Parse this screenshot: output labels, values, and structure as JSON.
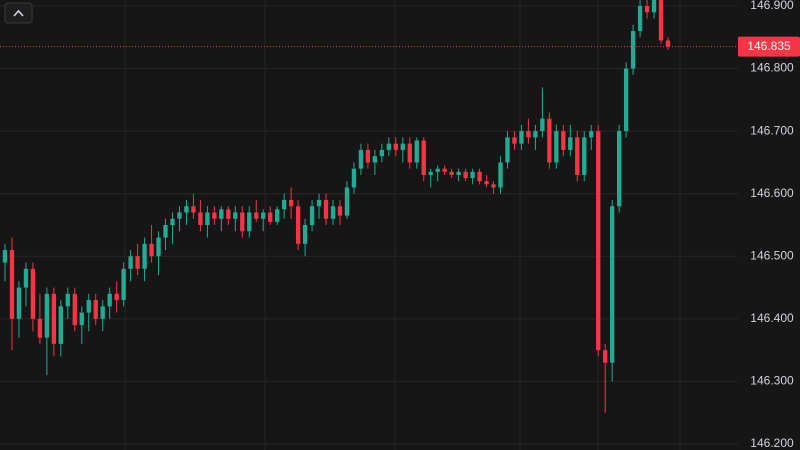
{
  "chart_data": {
    "type": "candlestick",
    "up_color": "#22ab94",
    "down_color": "#f23645",
    "ylim": [
      146.1904,
      146.9096
    ],
    "yticks": [
      {
        "value": 146.2,
        "label": "146.200"
      },
      {
        "value": 146.3,
        "label": "146.300"
      },
      {
        "value": 146.4,
        "label": "146.400"
      },
      {
        "value": 146.5,
        "label": "146.500"
      },
      {
        "value": 146.6,
        "label": "146.600"
      },
      {
        "value": 146.7,
        "label": "146.700"
      },
      {
        "value": 146.8,
        "label": "146.800"
      },
      {
        "value": 146.9,
        "label": "146.900"
      }
    ],
    "grid": true,
    "last_price": {
      "value": 146.835,
      "label": "146.835"
    },
    "ohlc": [
      [
        146.49,
        146.52,
        146.46,
        146.51
      ],
      [
        146.51,
        146.53,
        146.35,
        146.4
      ],
      [
        146.4,
        146.46,
        146.37,
        146.45
      ],
      [
        146.45,
        146.49,
        146.42,
        146.48
      ],
      [
        146.48,
        146.49,
        146.38,
        146.4
      ],
      [
        146.4,
        146.44,
        146.36,
        146.37
      ],
      [
        146.37,
        146.45,
        146.31,
        146.44
      ],
      [
        146.44,
        146.45,
        146.34,
        146.36
      ],
      [
        146.36,
        146.43,
        146.34,
        146.42
      ],
      [
        146.42,
        146.45,
        146.4,
        146.44
      ],
      [
        146.44,
        146.45,
        146.38,
        146.39
      ],
      [
        146.39,
        146.42,
        146.36,
        146.41
      ],
      [
        146.41,
        146.44,
        146.38,
        146.43
      ],
      [
        146.43,
        146.44,
        146.39,
        146.4
      ],
      [
        146.4,
        146.43,
        146.38,
        146.42
      ],
      [
        146.42,
        146.45,
        146.4,
        146.44
      ],
      [
        146.44,
        146.46,
        146.41,
        146.43
      ],
      [
        146.43,
        146.49,
        146.42,
        146.48
      ],
      [
        146.48,
        146.51,
        146.46,
        146.5
      ],
      [
        146.5,
        146.52,
        146.47,
        146.48
      ],
      [
        146.48,
        146.53,
        146.46,
        146.52
      ],
      [
        146.52,
        146.55,
        146.49,
        146.5
      ],
      [
        146.5,
        146.54,
        146.47,
        146.53
      ],
      [
        146.53,
        146.56,
        146.51,
        146.55
      ],
      [
        146.55,
        146.57,
        146.52,
        146.56
      ],
      [
        146.56,
        146.58,
        146.54,
        146.57
      ],
      [
        146.57,
        146.59,
        146.55,
        146.58
      ],
      [
        146.58,
        146.6,
        146.56,
        146.57
      ],
      [
        146.57,
        146.59,
        146.54,
        146.55
      ],
      [
        146.55,
        146.58,
        146.53,
        146.57
      ],
      [
        146.57,
        146.58,
        146.55,
        146.56
      ],
      [
        146.56,
        146.58,
        146.54,
        146.575
      ],
      [
        146.575,
        146.58,
        146.55,
        146.56
      ],
      [
        146.56,
        146.58,
        146.54,
        146.57
      ],
      [
        146.57,
        146.58,
        146.53,
        146.54
      ],
      [
        146.54,
        146.58,
        146.53,
        146.57
      ],
      [
        146.57,
        146.59,
        146.555,
        146.56
      ],
      [
        146.56,
        146.575,
        146.54,
        146.57
      ],
      [
        146.57,
        146.58,
        146.55,
        146.555
      ],
      [
        146.555,
        146.58,
        146.55,
        146.575
      ],
      [
        146.575,
        146.6,
        146.56,
        146.59
      ],
      [
        146.59,
        146.61,
        146.56,
        146.58
      ],
      [
        146.58,
        146.59,
        146.51,
        146.52
      ],
      [
        146.52,
        146.56,
        146.5,
        146.55
      ],
      [
        146.55,
        146.59,
        146.54,
        146.58
      ],
      [
        146.58,
        146.6,
        146.56,
        146.59
      ],
      [
        146.59,
        146.6,
        146.55,
        146.56
      ],
      [
        146.56,
        146.59,
        146.55,
        146.58
      ],
      [
        146.58,
        146.59,
        146.55,
        146.565
      ],
      [
        146.565,
        146.62,
        146.56,
        146.61
      ],
      [
        146.61,
        146.65,
        146.6,
        146.64
      ],
      [
        146.64,
        146.68,
        146.63,
        146.67
      ],
      [
        146.67,
        146.68,
        146.64,
        146.65
      ],
      [
        146.65,
        146.67,
        146.63,
        146.66
      ],
      [
        146.66,
        146.68,
        146.65,
        146.67
      ],
      [
        146.67,
        146.69,
        146.66,
        146.68
      ],
      [
        146.68,
        146.69,
        146.66,
        146.67
      ],
      [
        146.67,
        146.69,
        146.65,
        146.68
      ],
      [
        146.68,
        146.69,
        146.64,
        146.65
      ],
      [
        146.65,
        146.69,
        146.64,
        146.685
      ],
      [
        146.685,
        146.69,
        146.62,
        146.63
      ],
      [
        146.63,
        146.64,
        146.61,
        146.635
      ],
      [
        146.635,
        146.645,
        146.62,
        146.64
      ],
      [
        146.64,
        146.645,
        146.63,
        146.635
      ],
      [
        146.635,
        146.64,
        146.625,
        146.63
      ],
      [
        146.63,
        146.64,
        146.62,
        146.635
      ],
      [
        146.635,
        146.64,
        146.62,
        146.625
      ],
      [
        146.625,
        146.64,
        146.615,
        146.635
      ],
      [
        146.635,
        146.64,
        146.615,
        146.62
      ],
      [
        146.62,
        146.63,
        146.61,
        146.615
      ],
      [
        146.615,
        146.62,
        146.6,
        146.61
      ],
      [
        146.61,
        146.66,
        146.6,
        146.65
      ],
      [
        146.65,
        146.7,
        146.64,
        146.69
      ],
      [
        146.69,
        146.7,
        146.67,
        146.68
      ],
      [
        146.68,
        146.71,
        146.67,
        146.7
      ],
      [
        146.7,
        146.72,
        146.68,
        146.69
      ],
      [
        146.69,
        146.71,
        146.67,
        146.7
      ],
      [
        146.7,
        146.77,
        146.69,
        146.72
      ],
      [
        146.72,
        146.73,
        146.64,
        146.65
      ],
      [
        146.65,
        146.71,
        146.64,
        146.7
      ],
      [
        146.7,
        146.71,
        146.66,
        146.67
      ],
      [
        146.67,
        146.71,
        146.66,
        146.69
      ],
      [
        146.69,
        146.7,
        146.62,
        146.63
      ],
      [
        146.63,
        146.7,
        146.62,
        146.69
      ],
      [
        146.69,
        146.71,
        146.67,
        146.7
      ],
      [
        146.7,
        146.71,
        146.34,
        146.35
      ],
      [
        146.35,
        146.36,
        146.25,
        146.33
      ],
      [
        146.33,
        146.59,
        146.3,
        146.58
      ],
      [
        146.58,
        146.71,
        146.57,
        146.7
      ],
      [
        146.7,
        146.81,
        146.69,
        146.8
      ],
      [
        146.8,
        146.87,
        146.79,
        146.86
      ],
      [
        146.86,
        146.91,
        146.85,
        146.9
      ],
      [
        146.9,
        146.915,
        146.88,
        146.89
      ],
      [
        146.89,
        146.915,
        146.88,
        146.91
      ],
      [
        146.91,
        146.92,
        146.84,
        146.845
      ],
      [
        146.845,
        146.85,
        146.83,
        146.835
      ]
    ]
  }
}
